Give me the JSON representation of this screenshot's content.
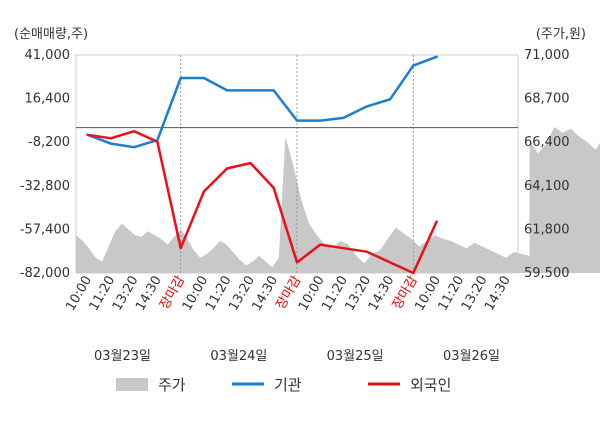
{
  "chart_data": {
    "type": "line",
    "left_axis": {
      "label": "(순매매량,주)",
      "ticks": [
        41000,
        16400,
        -8200,
        -32800,
        -57400,
        -82000
      ],
      "tick_labels": [
        "41,000",
        "16,400",
        "-8,200",
        "-32,800",
        "-57,400",
        "-82,000"
      ],
      "range": [
        -82000,
        41000
      ]
    },
    "right_axis": {
      "label": "(주가,원)",
      "ticks": [
        71000,
        68700,
        66400,
        64100,
        61800,
        59500
      ],
      "tick_labels": [
        "71,000",
        "68,700",
        "66,400",
        "64,100",
        "61,800",
        "59,500"
      ],
      "range": [
        59500,
        71000
      ]
    },
    "x_tick_labels": [
      "10:00",
      "11:20",
      "13:20",
      "14:30",
      "장마감",
      "10:00",
      "11:20",
      "13:20",
      "14:30",
      "장마감",
      "10:00",
      "11:20",
      "13:20",
      "14:30",
      "장마감",
      "10:00",
      "11:20",
      "13:20",
      "14:30"
    ],
    "x_tick_colors": [
      "#333333",
      "#333333",
      "#333333",
      "#333333",
      "#e60000",
      "#333333",
      "#333333",
      "#333333",
      "#333333",
      "#e60000",
      "#333333",
      "#333333",
      "#333333",
      "#333333",
      "#e60000",
      "#333333",
      "#333333",
      "#333333",
      "#333333"
    ],
    "dates": [
      "03월23일",
      "03월24일",
      "03월25일",
      "03월26일"
    ],
    "zero_line": 0,
    "series": [
      {
        "name": "기관",
        "axis": "left",
        "color": "#1a7fd0",
        "x": [
          1,
          2,
          3,
          4,
          5,
          6,
          7,
          8,
          9,
          10,
          11,
          12,
          13,
          14,
          15,
          16,
          17,
          18,
          19,
          20,
          21
        ],
        "values": [
          -4000,
          -9000,
          -11000,
          -7000,
          28000,
          28000,
          21000,
          21000,
          21000,
          4000,
          4000,
          5500,
          12000,
          16000,
          35000,
          40000,
          null,
          null,
          null,
          null,
          null
        ]
      },
      {
        "name": "외국인",
        "axis": "left",
        "color": "#e8101a",
        "x": [
          1,
          2,
          3,
          4,
          5,
          6,
          7,
          8,
          9,
          10,
          11,
          12,
          13,
          14,
          15,
          16,
          17,
          18,
          19,
          20,
          21
        ],
        "values": [
          -4000,
          -6000,
          -2000,
          -8000,
          -68000,
          -36000,
          -23000,
          -20000,
          -34000,
          -76000,
          -66000,
          -68000,
          -70000,
          -76000,
          -82000,
          -53000,
          null,
          null,
          null,
          null,
          null
        ]
      }
    ],
    "price": {
      "name": "주가",
      "axis": "right",
      "color": "#c8c8c8",
      "segments": [
        {
          "from": 0,
          "to": 9,
          "values": [
            61500,
            61200,
            60800,
            60300,
            60100,
            60900,
            61700,
            62100,
            61800,
            61500,
            61400,
            61700,
            61500,
            61300,
            61000,
            61400,
            61800,
            61300,
            60700,
            60300,
            60500,
            60800,
            61200,
            61000,
            60600,
            60200,
            59900,
            60100,
            60400,
            60100,
            59800,
            60300,
            66700
          ]
        },
        {
          "from": 9,
          "to": 19.5,
          "values": [
            66700,
            65200,
            63400,
            62100,
            61500,
            61000,
            60800,
            61200,
            61000,
            60400,
            60000,
            60500,
            60700,
            61300,
            61900,
            61600,
            61300,
            60900,
            61200,
            61500,
            61300,
            61200,
            61000,
            60800,
            61100,
            60900,
            60700,
            60500,
            60300,
            60600,
            60500,
            60400
          ]
        },
        {
          "from": 19.5,
          "to": 30.5,
          "values": [
            66500,
            65800,
            66300,
            67200,
            66900,
            67100,
            66700,
            66400,
            66000,
            66700,
            66500,
            65900,
            65500,
            65200,
            65700,
            66200,
            65600,
            65300,
            65400,
            65200,
            65500,
            65600,
            65300,
            65600,
            65200,
            65400,
            65900,
            65500,
            66200,
            66000,
            66700,
            66400
          ]
        },
        {
          "from": 30.5,
          "to": 32,
          "values": [
            68700,
            69800,
            70400,
            70100,
            70400,
            69800,
            70200,
            69900
          ]
        }
      ]
    }
  },
  "legend": {
    "price": "주가",
    "institution": "기관",
    "foreign": "외국인"
  }
}
